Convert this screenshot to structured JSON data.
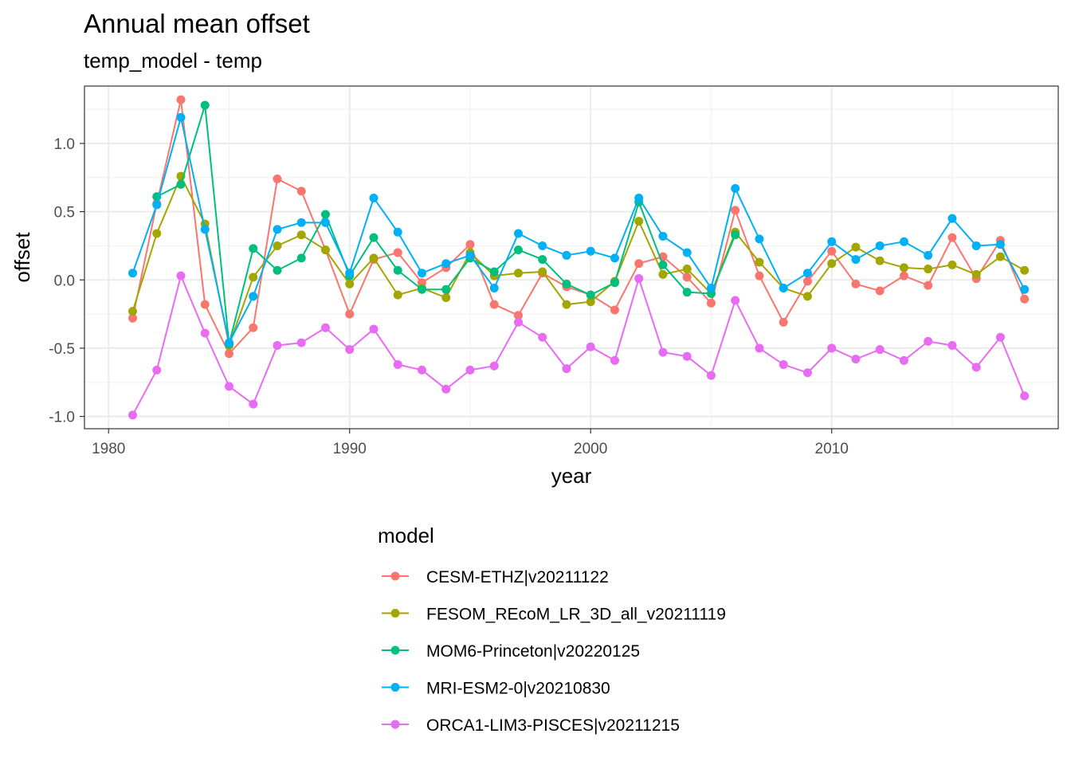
{
  "chart_data": {
    "type": "line",
    "title": "Annual mean offset",
    "subtitle": "temp_model - temp",
    "xlabel": "year",
    "ylabel": "offset",
    "xlim": [
      1980,
      2018
    ],
    "ylim": [
      -1.0,
      1.25
    ],
    "x_ticks": [
      1980,
      1990,
      2000,
      2010
    ],
    "x_tick_labels": [
      "1980",
      "1990",
      "2000",
      "2010"
    ],
    "y_ticks": [
      1.0,
      0.5,
      0.0,
      -0.5,
      -1.0
    ],
    "y_tick_labels": [
      "1.0",
      "0.5",
      "0.0",
      "-0.5",
      "-1.0"
    ],
    "grid": true,
    "legend_title": "model",
    "legend_position": "bottom",
    "x": [
      1981,
      1982,
      1983,
      1984,
      1985,
      1986,
      1987,
      1988,
      1989,
      1990,
      1991,
      1992,
      1993,
      1994,
      1995,
      1996,
      1997,
      1998,
      1999,
      2000,
      2001,
      2002,
      2003,
      2004,
      2005,
      2006,
      2007,
      2008,
      2009,
      2010,
      2011,
      2012,
      2013,
      2014,
      2015,
      2016,
      2017,
      2018
    ],
    "series": [
      {
        "name": "CESM-ETHZ|v20211122",
        "color": "#F8766D",
        "values": [
          -0.28,
          0.56,
          1.32,
          -0.18,
          -0.54,
          -0.35,
          0.74,
          0.65,
          0.22,
          -0.25,
          0.15,
          0.2,
          -0.02,
          0.09,
          0.26,
          -0.18,
          -0.26,
          0.05,
          -0.05,
          -0.11,
          -0.22,
          0.12,
          0.17,
          0.02,
          -0.17,
          0.51,
          0.03,
          -0.31,
          -0.01,
          0.21,
          -0.03,
          -0.08,
          0.03,
          -0.04,
          0.31,
          0.01,
          0.29,
          -0.14
        ]
      },
      {
        "name": "FESOM_REcoM_LR_3D_all_v20211119",
        "color": "#A3A500",
        "values": [
          -0.23,
          0.34,
          0.76,
          0.41,
          -0.48,
          0.02,
          0.25,
          0.33,
          0.22,
          -0.03,
          0.16,
          -0.11,
          -0.06,
          -0.13,
          0.2,
          0.03,
          0.05,
          0.06,
          -0.18,
          -0.16,
          -0.01,
          0.43,
          0.04,
          0.08,
          -0.1,
          0.35,
          0.13,
          -0.06,
          -0.12,
          0.12,
          0.24,
          0.14,
          0.09,
          0.08,
          0.11,
          0.04,
          0.17,
          0.07
        ]
      },
      {
        "name": "MOM6-Princeton|v20220125",
        "color": "#00BF7D",
        "values": [
          null,
          0.61,
          0.7,
          1.28,
          -0.47,
          0.23,
          0.07,
          0.16,
          0.48,
          0.03,
          0.31,
          0.07,
          -0.07,
          -0.07,
          0.16,
          0.06,
          0.22,
          0.15,
          -0.03,
          -0.11,
          -0.02,
          0.57,
          0.11,
          -0.09,
          -0.1,
          0.33,
          null,
          null,
          null,
          null,
          null,
          null,
          null,
          null,
          null,
          null,
          null,
          null
        ]
      },
      {
        "name": "MRI-ESM2-0|v20210830",
        "color": "#00B0F6",
        "values": [
          0.05,
          0.55,
          1.19,
          0.37,
          -0.46,
          -0.12,
          0.37,
          0.42,
          0.42,
          0.05,
          0.6,
          0.35,
          0.05,
          0.12,
          0.18,
          -0.06,
          0.34,
          0.25,
          0.18,
          0.21,
          0.16,
          0.6,
          0.32,
          0.2,
          -0.06,
          0.67,
          0.3,
          -0.06,
          0.05,
          0.28,
          0.15,
          0.25,
          0.28,
          0.18,
          0.45,
          0.25,
          0.26,
          -0.07
        ]
      },
      {
        "name": "ORCA1-LIM3-PISCES|v20211215",
        "color": "#E76BF3",
        "values": [
          -0.99,
          -0.66,
          0.03,
          -0.39,
          -0.78,
          -0.91,
          -0.48,
          -0.46,
          -0.35,
          -0.51,
          -0.36,
          -0.62,
          -0.66,
          -0.8,
          -0.66,
          -0.63,
          -0.31,
          -0.42,
          -0.65,
          -0.49,
          -0.59,
          0.01,
          -0.53,
          -0.56,
          -0.7,
          -0.15,
          -0.5,
          -0.62,
          -0.68,
          -0.5,
          -0.58,
          -0.51,
          -0.59,
          -0.45,
          -0.48,
          -0.64,
          -0.42,
          -0.85
        ]
      }
    ]
  }
}
